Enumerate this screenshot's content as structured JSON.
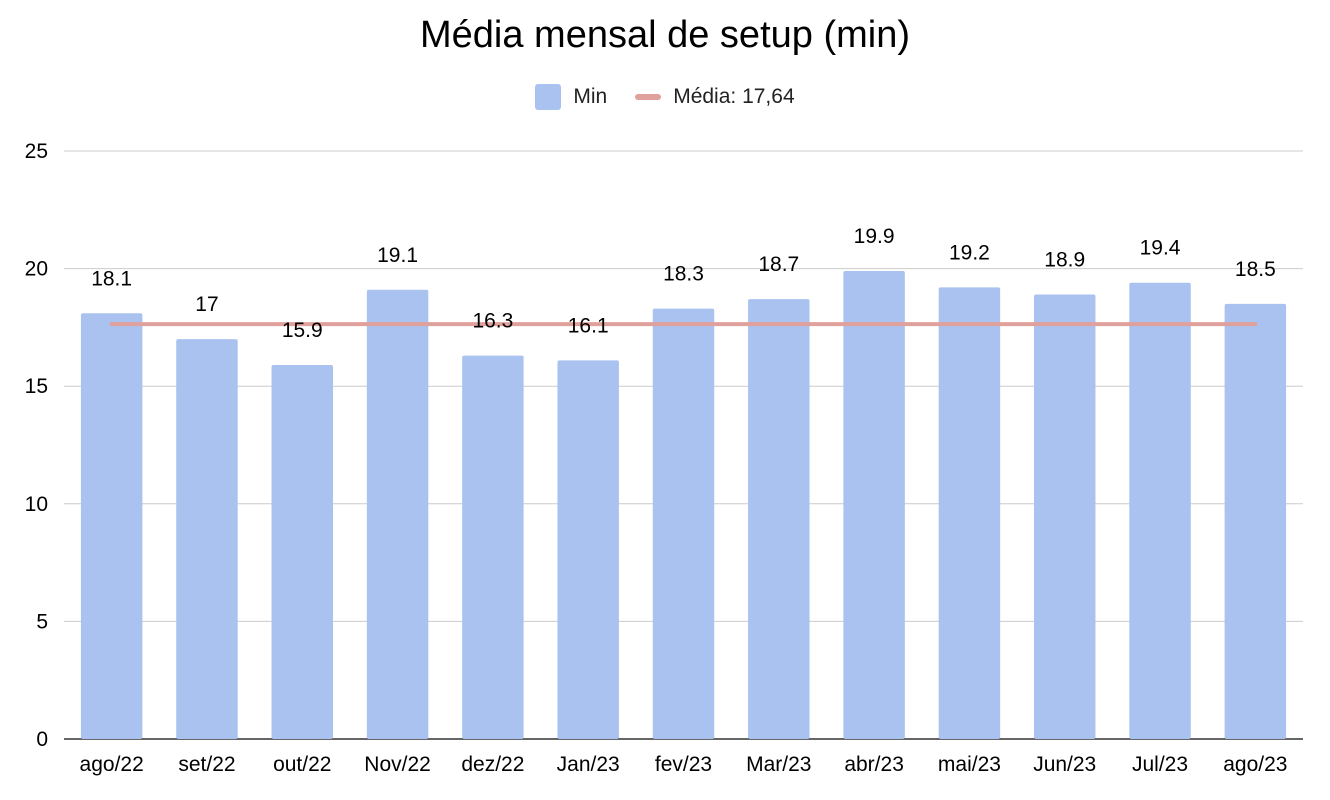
{
  "chart_data": {
    "type": "bar",
    "title": "Média mensal de setup (min)",
    "categories": [
      "ago/22",
      "set/22",
      "out/22",
      "Nov/22",
      "dez/22",
      "Jan/23",
      "fev/23",
      "Mar/23",
      "abr/23",
      "mai/23",
      "Jun/23",
      "Jul/23",
      "ago/23"
    ],
    "series": [
      {
        "name": "Min",
        "values": [
          18.1,
          17,
          15.9,
          19.1,
          16.3,
          16.1,
          18.3,
          18.7,
          19.9,
          19.2,
          18.9,
          19.4,
          18.5
        ],
        "color": "#aac2f0"
      }
    ],
    "data_labels": [
      "18.1",
      "17",
      "15.9",
      "19.1",
      "16.3",
      "16.1",
      "18.3",
      "18.7",
      "19.9",
      "19.2",
      "18.9",
      "19.4",
      "18.5"
    ],
    "reference_line": {
      "name": "Média: 17,64",
      "value": 17.64,
      "color": "#e0a09c"
    },
    "ylim": [
      0,
      25
    ],
    "yticks": [
      0,
      5,
      10,
      15,
      20,
      25
    ],
    "grid": true,
    "legend_position": "top"
  }
}
